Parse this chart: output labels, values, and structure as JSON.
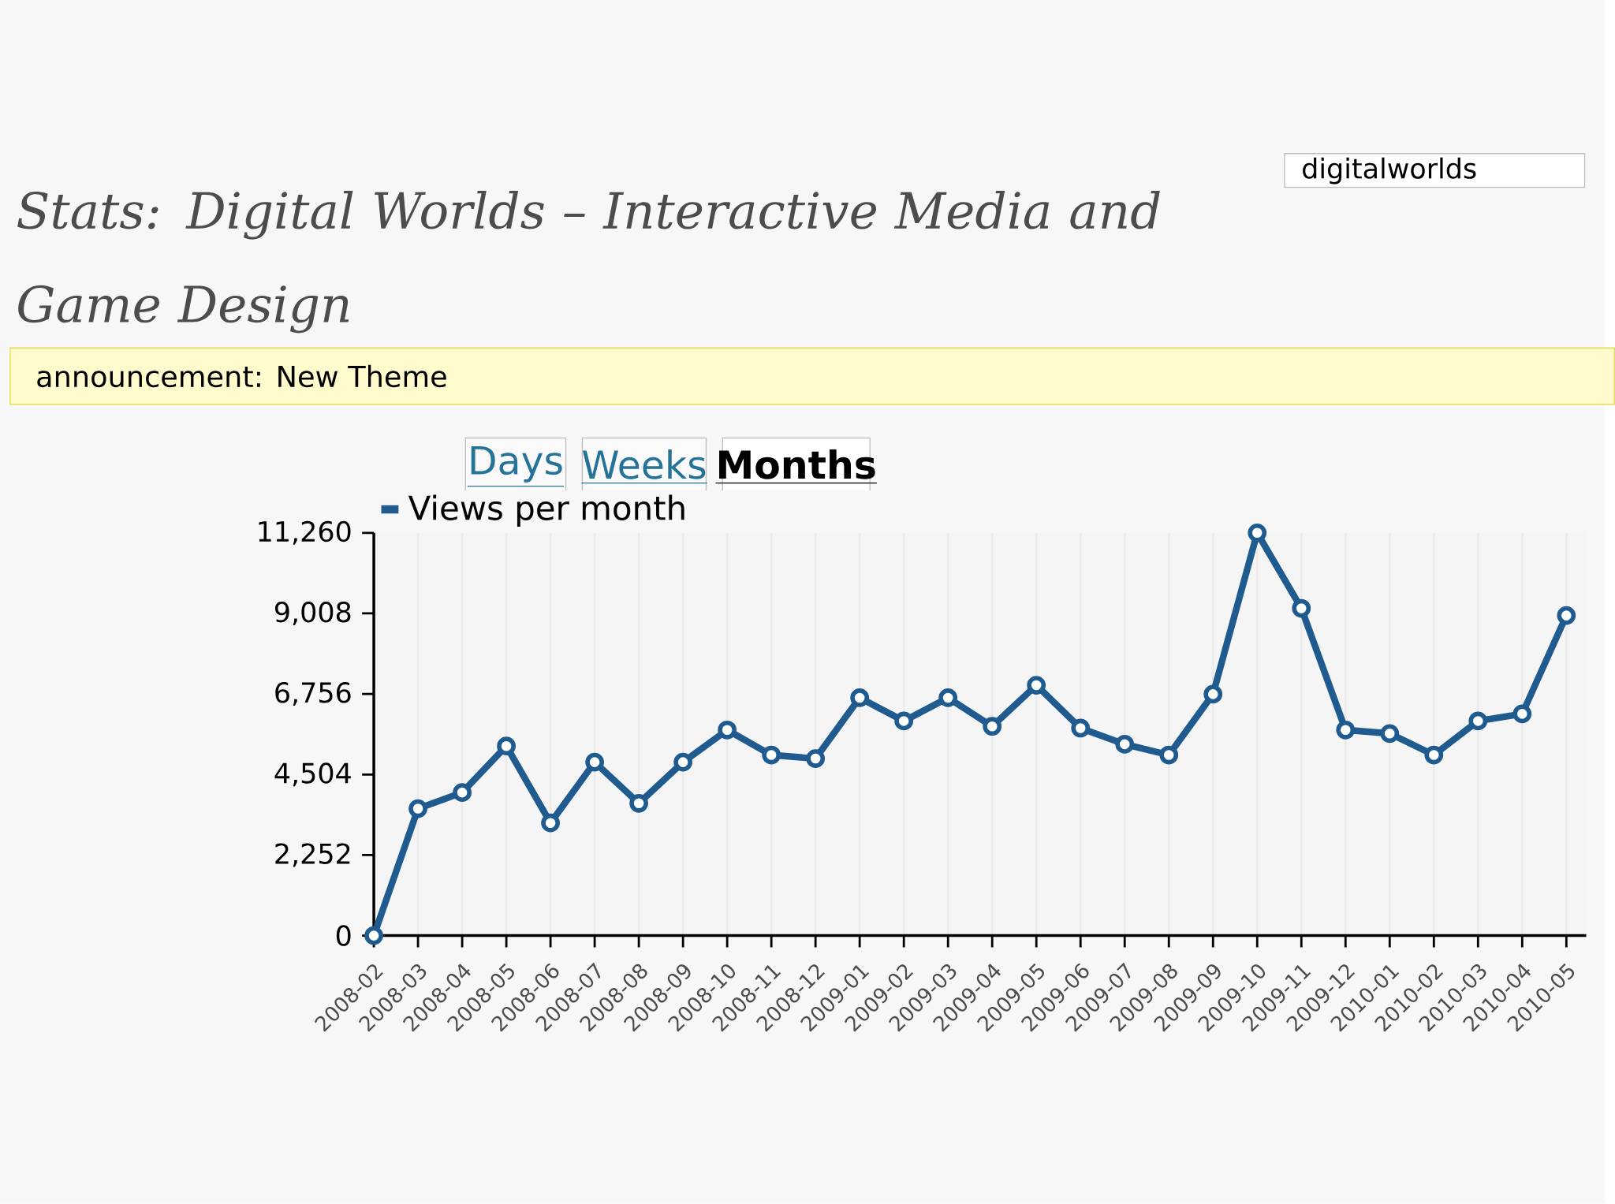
{
  "chart_data": {
    "type": "line",
    "title": "Stats: Digital Worlds – Interactive Media and Game Design",
    "annotations": [
      "digitalworlds",
      "announcement: New Theme",
      "Days",
      "Weeks",
      "Months"
    ],
    "categories": [
      "2008-02",
      "2008-03",
      "2008-04",
      "2008-05",
      "2008-06",
      "2008-07",
      "2008-08",
      "2008-09",
      "2008-10",
      "2008-11",
      "2008-12",
      "2009-01",
      "2009-02",
      "2009-03",
      "2009-04",
      "2009-05",
      "2009-06",
      "2009-07",
      "2009-08",
      "2009-09",
      "2009-10",
      "2009-11",
      "2009-12",
      "2010-01",
      "2010-02",
      "2010-03",
      "2010-04",
      "2010-05"
    ],
    "series": [
      {
        "name": "Views per month",
        "color": "#1f5b8e",
        "values": [
          0,
          3550,
          4000,
          5300,
          3150,
          4850,
          3700,
          4850,
          5750,
          5050,
          4950,
          6650,
          6000,
          6650,
          5850,
          7000,
          5800,
          5350,
          5050,
          6750,
          11260,
          9150,
          5750,
          5650,
          5050,
          6000,
          6200,
          8950
        ]
      }
    ],
    "ylim": [
      0,
      11260
    ],
    "yticks": [
      {
        "value": 0,
        "label": "0"
      },
      {
        "value": 2252,
        "label": "2,252"
      },
      {
        "value": 4504,
        "label": "4,504"
      },
      {
        "value": 6756,
        "label": "6,756"
      },
      {
        "value": 9008,
        "label": "9,008"
      },
      {
        "value": 11260,
        "label": "11,260"
      }
    ],
    "grid": "x",
    "legend": "top left",
    "marker": "circle",
    "line_style": "solid"
  }
}
